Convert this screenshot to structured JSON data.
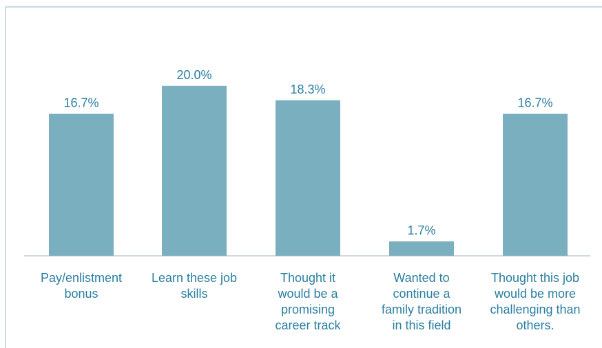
{
  "colors": {
    "bar": "#7aafc0",
    "label": "#2a7fa0",
    "axis": "#9ab6c3",
    "border": "#8fb5c4"
  },
  "chart_data": {
    "type": "bar",
    "title": "",
    "xlabel": "",
    "ylabel": "",
    "ylim": [
      0,
      22
    ],
    "categories": [
      [
        "Pay/enlistment",
        "bonus"
      ],
      [
        "Learn these job",
        "skills"
      ],
      [
        "Thought it",
        "would be a",
        "promising",
        "career track"
      ],
      [
        "Wanted to",
        "continue a",
        "family tradition",
        "in this field"
      ],
      [
        "Thought this job",
        "would be more",
        "challenging than",
        "others."
      ]
    ],
    "values": [
      16.7,
      20.0,
      18.3,
      1.7,
      16.7
    ],
    "data_labels": [
      "16.7%",
      "20.0%",
      "18.3%",
      "1.7%",
      "16.7%"
    ],
    "grid": false,
    "legend": "none"
  }
}
